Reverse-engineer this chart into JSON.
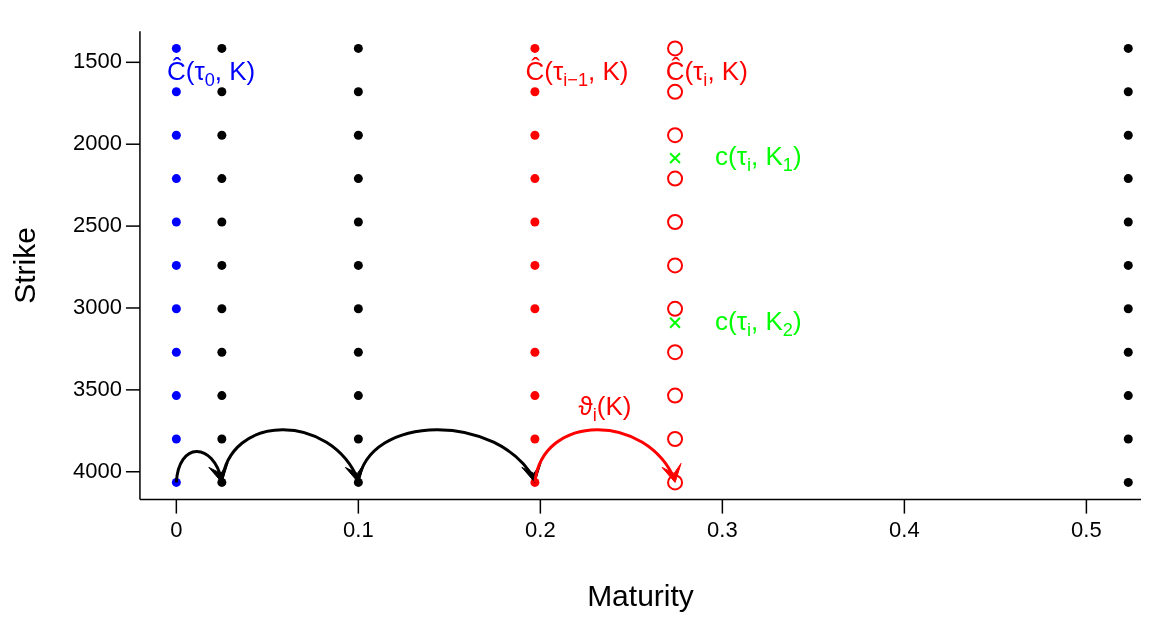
{
  "chart_data": {
    "type": "scatter",
    "xlabel": "Maturity",
    "ylabel": "Strike",
    "xlim": [
      -0.02,
      0.53
    ],
    "xticks": [
      0,
      0.1,
      0.2,
      0.3,
      0.4,
      0.5
    ],
    "ylim": [
      4170,
      1310
    ],
    "yticks": [
      1500,
      2000,
      2500,
      3000,
      3500,
      4000
    ],
    "grid": false,
    "legend": false,
    "marker": "circle",
    "series": [
      {
        "color": "#0000ff",
        "x": [
          0,
          0,
          0,
          0,
          0,
          0,
          0,
          0,
          0,
          0,
          0
        ],
        "values": [
          1415,
          1680,
          1945,
          2210,
          2475,
          2740,
          3005,
          3270,
          3535,
          3800,
          4065
        ]
      },
      {
        "color": "#000000",
        "x": [
          0.025,
          0.025,
          0.025,
          0.025,
          0.025,
          0.025,
          0.025,
          0.025,
          0.025,
          0.025,
          0.025,
          0.1,
          0.1,
          0.1,
          0.1,
          0.1,
          0.1,
          0.1,
          0.1,
          0.1,
          0.1,
          0.1,
          0.523,
          0.523,
          0.523,
          0.523,
          0.523,
          0.523,
          0.523,
          0.523,
          0.523,
          0.523,
          0.523
        ],
        "values": [
          1415,
          1680,
          1945,
          2210,
          2475,
          2740,
          3005,
          3270,
          3535,
          3800,
          4065,
          1415,
          1680,
          1945,
          2210,
          2475,
          2740,
          3005,
          3270,
          3535,
          3800,
          4065,
          1415,
          1680,
          1945,
          2210,
          2475,
          2740,
          3005,
          3270,
          3535,
          3800,
          4065
        ]
      },
      {
        "color": "#ff0000",
        "x": [
          0.197,
          0.197,
          0.197,
          0.197,
          0.197,
          0.197,
          0.197,
          0.197,
          0.197,
          0.197,
          0.197
        ],
        "values": [
          1415,
          1680,
          1945,
          2210,
          2475,
          2740,
          3005,
          3270,
          3535,
          3800,
          4065
        ]
      },
      {
        "color": "#ff0000",
        "marker": "circle",
        "x": [
          0.274,
          0.274,
          0.274,
          0.274,
          0.274,
          0.274,
          0.274,
          0.274,
          0.274,
          0.274,
          0.274
        ],
        "values": [
          1415,
          1680,
          1945,
          2210,
          2475,
          2740,
          3005,
          3270,
          3535,
          3800,
          4065
        ]
      },
      {
        "color": "#00ff00",
        "marker": "cross",
        "x": [
          0.274,
          0.274
        ],
        "values": [
          2085,
          3090
        ]
      }
    ],
    "annotations": [
      "Ĉ(τ$_{0}$, K)",
      "Ĉ(τ$_{i−1}$, K)",
      "Ĉ(τ$_{i}$, K)",
      {
        "text": "c(τ$_{i}$, K$_{1}$)",
        "x": 0.274,
        "y": 2085
      },
      {
        "text": "c(τ$_{i}$, K$_{2}$)",
        "x": 0.274,
        "y": 3090
      },
      "ϑ$_{i}$(K)"
    ]
  }
}
